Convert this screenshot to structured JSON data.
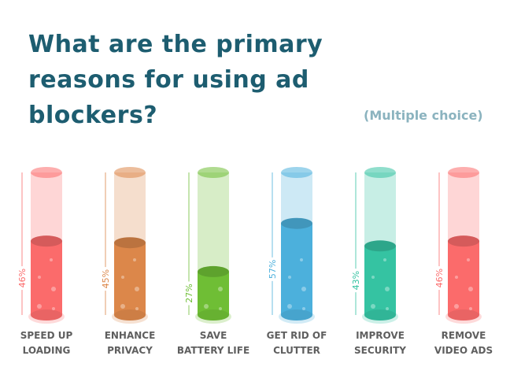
{
  "title": "What are the primary reasons for using ad blockers?",
  "subtitle": "(Multiple choice)",
  "chart_data": {
    "type": "bar",
    "title": "What are the primary reasons for using ad blockers?",
    "subtitle": "(Multiple choice)",
    "categories": [
      [
        "SPEED UP",
        "LOADING"
      ],
      [
        "ENHANCE",
        "PRIVACY"
      ],
      [
        "SAVE",
        "BATTERY LIFE"
      ],
      [
        "GET RID OF",
        "CLUTTER"
      ],
      [
        "IMPROVE",
        "SECURITY"
      ],
      [
        "REMOVE",
        "VIDEO ADS"
      ]
    ],
    "values": [
      46,
      45,
      27,
      57,
      43,
      46
    ],
    "labels": [
      "46%",
      "45%",
      "27%",
      "57%",
      "43%",
      "46%"
    ],
    "colors": [
      "#fb6b6b",
      "#dc874a",
      "#6fbe35",
      "#4cb0dc",
      "#35c3a2",
      "#fb6b6b"
    ],
    "ylim": [
      0,
      100
    ],
    "unit": "%"
  }
}
